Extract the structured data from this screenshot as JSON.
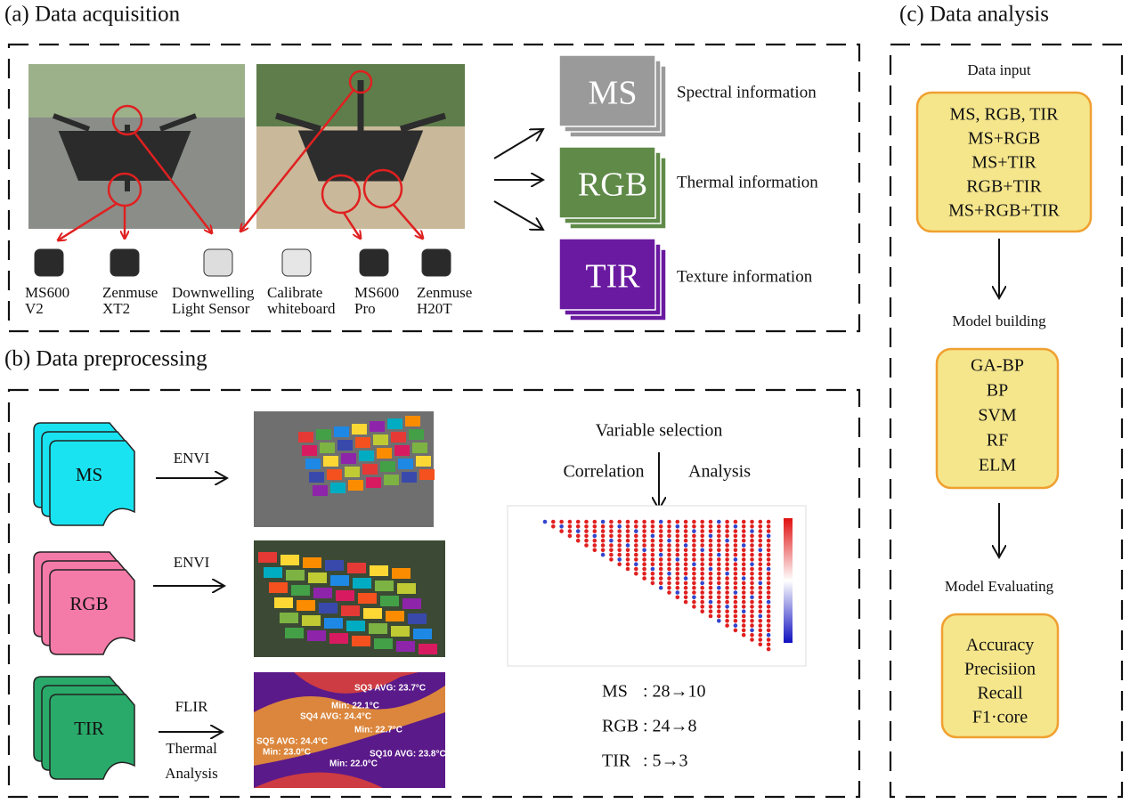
{
  "acquisition": {
    "title": "(a) Data acquisition",
    "devices": [
      [
        "MS600",
        "V2"
      ],
      [
        "Zenmuse",
        "XT2"
      ],
      [
        "Downwelling",
        "Light Sensor"
      ],
      [
        "Calibrate",
        "whiteboard"
      ],
      [
        "MS600",
        "Pro"
      ],
      [
        "Zenmuse",
        "H20T"
      ]
    ],
    "images": [
      "MS",
      "RGB",
      "TIR"
    ],
    "information": [
      "Spectral information",
      "Thermal information",
      "Texture information"
    ]
  },
  "preprocessing": {
    "title": "(b) Data preprocessing",
    "sources": [
      "MS",
      "RGB",
      "TIR"
    ],
    "tools": [
      [
        "ENVI"
      ],
      [
        "ENVI"
      ],
      [
        "FLIR",
        "Thermal",
        "Analysis"
      ]
    ],
    "thermal_labels": [
      "SQ3 AVG: 23.7°C",
      "SQ4 AVG: 24.4°C",
      "SQ5 AVG: 24.4°C",
      "SQ10 AVG: 23.8°C",
      "Min: 22.1°C",
      "Min: 22.7°C",
      "Min: 23.0°C",
      "Min: 22.0°C"
    ],
    "variable_selection": "Variable selection",
    "correlation": [
      "Correlation",
      "Analysis"
    ],
    "reductions": [
      [
        "MS",
        ": 28→10"
      ],
      [
        "RGB",
        ": 24→8"
      ],
      [
        "TIR",
        ": 5→3"
      ]
    ]
  },
  "analysis": {
    "title": "(c) Data analysis",
    "data_input": {
      "label": "Data input",
      "items": [
        "MS, RGB, TIR",
        "MS+RGB",
        "MS+TIR",
        "RGB+TIR",
        "MS+RGB+TIR"
      ]
    },
    "model_building": {
      "label": "Model building",
      "items": [
        "GA-BP",
        "BP",
        "SVM",
        "RF",
        "ELM"
      ]
    },
    "model_evaluating": {
      "label": "Model Evaluating",
      "items": [
        "Accuracy",
        "Precisiion",
        "Recall",
        "F1·core"
      ]
    }
  }
}
